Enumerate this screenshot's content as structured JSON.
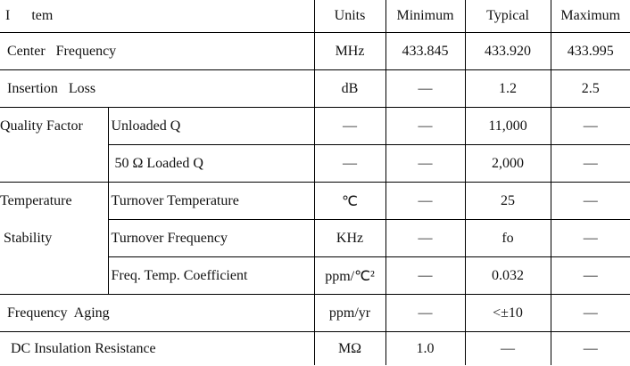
{
  "header": {
    "item": "I      tem",
    "units": "Units",
    "minimum": "Minimum",
    "typical": "Typical",
    "maximum": "Maximum"
  },
  "rows": [
    {
      "item": "Center   Frequency",
      "units": "MHz",
      "min": "433.845",
      "typ": "433.920",
      "max": "433.995"
    },
    {
      "item": "Insertion   Loss",
      "units": "dB",
      "min": "—",
      "typ": "1.2",
      "max": "2.5"
    },
    {
      "group": [
        "Quality Factor"
      ],
      "subrows": [
        {
          "item": "Unloaded Q",
          "units": "—",
          "min": "—",
          "typ": "11,000",
          "max": "—"
        },
        {
          "item": " 50 Ω Loaded Q",
          "units": "—",
          "min": "—",
          "typ": "2,000",
          "max": "—"
        }
      ]
    },
    {
      "group": [
        "Temperature",
        " Stability"
      ],
      "subrows": [
        {
          "item": "Turnover Temperature",
          "units": "℃",
          "min": "—",
          "typ": "25",
          "max": "—"
        },
        {
          "item": "Turnover Frequency",
          "units": "KHz",
          "min": "—",
          "typ": "fo",
          "max": "—"
        },
        {
          "item": "Freq. Temp. Coefficient",
          "units": "ppm/℃²",
          "min": "—",
          "typ": "0.032",
          "max": "—"
        }
      ]
    },
    {
      "item": "Frequency  Aging",
      "units": "ppm/yr",
      "min": "—",
      "typ": "<±10",
      "max": "—"
    },
    {
      "item": " DC Insulation Resistance",
      "units": "MΩ",
      "min": "1.0",
      "typ": "—",
      "max": "—"
    }
  ]
}
